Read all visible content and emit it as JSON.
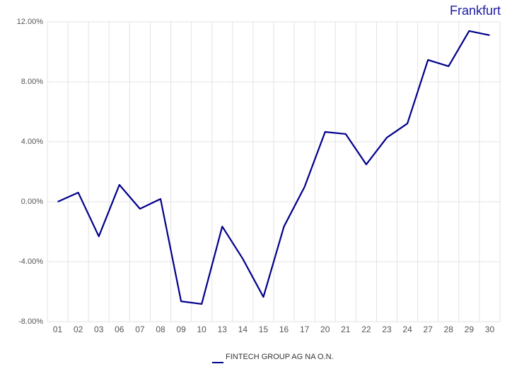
{
  "chart_data": {
    "type": "line",
    "title": "Frankfurt",
    "categories": [
      "01",
      "02",
      "03",
      "06",
      "07",
      "08",
      "09",
      "10",
      "13",
      "14",
      "15",
      "16",
      "17",
      "20",
      "21",
      "22",
      "23",
      "24",
      "27",
      "28",
      "29",
      "30"
    ],
    "series": [
      {
        "name": "FINTECH GROUP AG NA O.N.",
        "color": "#00008b",
        "values": [
          0.0,
          0.61,
          -2.31,
          1.13,
          -0.47,
          0.19,
          -6.64,
          -6.82,
          -1.65,
          -3.81,
          -6.35,
          -1.65,
          0.99,
          4.66,
          4.52,
          2.49,
          4.28,
          5.22,
          9.46,
          9.04,
          11.39,
          11.11
        ]
      }
    ],
    "ylim": [
      -8,
      12
    ],
    "yticks": [
      {
        "value": -8,
        "label": "-8.00%"
      },
      {
        "value": -4,
        "label": "-4.00%"
      },
      {
        "value": 0,
        "label": "0.00%"
      },
      {
        "value": 4,
        "label": "4.00%"
      },
      {
        "value": 8,
        "label": "8.00%"
      },
      {
        "value": 12,
        "label": "12.00%"
      }
    ],
    "grid": true
  }
}
